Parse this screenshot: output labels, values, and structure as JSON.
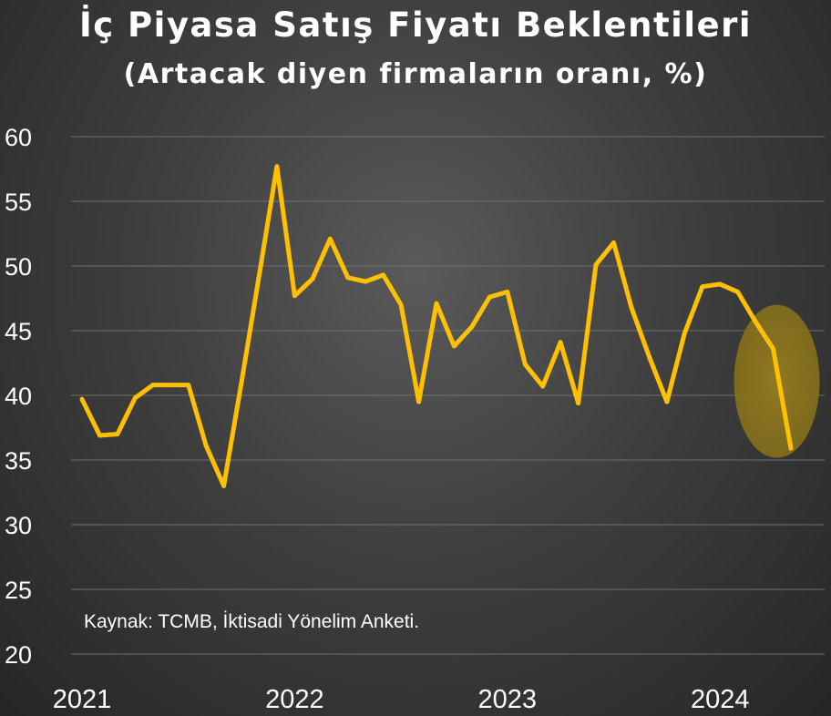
{
  "chart_data": {
    "type": "line",
    "title": "İç Piyasa Satış Fiyatı Beklentileri",
    "subtitle": "(Artacak diyen firmaların oranı, %)",
    "xlabel": "",
    "ylabel": "",
    "ylim": [
      20,
      60
    ],
    "y_ticks": [
      60,
      55,
      50,
      45,
      40,
      35,
      30,
      25,
      20
    ],
    "x_ticks": [
      "2021",
      "2022",
      "2023",
      "2024"
    ],
    "x_tick_index": [
      0,
      12,
      24,
      36
    ],
    "grid": true,
    "highlight": {
      "shape": "ellipse",
      "color": "#b0901a",
      "covers_last_points": 3
    },
    "series": [
      {
        "color": "#ffc000",
        "x": [
          "2021-01",
          "2021-02",
          "2021-03",
          "2021-04",
          "2021-05",
          "2021-06",
          "2021-07",
          "2021-08",
          "2021-09",
          "2021-10",
          "2021-11",
          "2021-12",
          "2022-01",
          "2022-02",
          "2022-03",
          "2022-04",
          "2022-05",
          "2022-06",
          "2022-07",
          "2022-08",
          "2022-09",
          "2022-10",
          "2022-11",
          "2022-12",
          "2023-01",
          "2023-02",
          "2023-03",
          "2023-04",
          "2023-05",
          "2023-06",
          "2023-07",
          "2023-08",
          "2023-09",
          "2023-10",
          "2023-11",
          "2023-12",
          "2024-01",
          "2024-02",
          "2024-03",
          "2024-04",
          "2024-05"
        ],
        "values": [
          39.7,
          36.9,
          37.0,
          39.8,
          40.8,
          40.8,
          40.8,
          36.1,
          33.0,
          41.0,
          49.3,
          57.7,
          47.7,
          49.0,
          52.1,
          49.1,
          48.8,
          49.3,
          47.0,
          39.5,
          47.1,
          43.8,
          45.3,
          47.6,
          48.0,
          42.4,
          40.7,
          44.1,
          39.4,
          50.1,
          51.8,
          46.8,
          43.0,
          39.5,
          44.8,
          48.4,
          48.6,
          48.0,
          45.7,
          43.6,
          35.9
        ]
      }
    ],
    "source": "Kaynak: TCMB, İktisadi Yönelim Anketi."
  }
}
